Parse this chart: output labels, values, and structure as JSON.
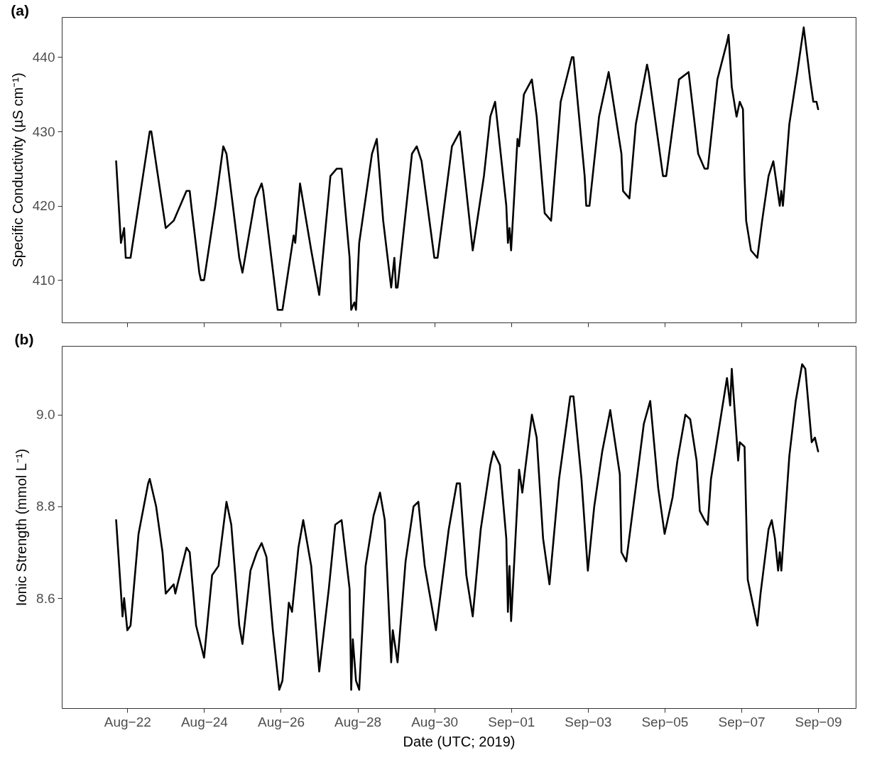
{
  "chart_data": [
    {
      "type": "line",
      "title": "(a)",
      "ylabel": "Specific Conductivity (µS cm⁻¹)",
      "xlim": [
        "2019-08-20T07:00",
        "2019-09-09T23:30"
      ],
      "ylim": [
        404.3,
        445.4
      ],
      "yticks": [
        410,
        420,
        430,
        440
      ],
      "tick_labels": "y",
      "xticks": [
        {
          "value": "2019-08-22",
          "label": null
        },
        {
          "value": "2019-08-24",
          "label": null
        },
        {
          "value": "2019-08-26",
          "label": null
        },
        {
          "value": "2019-08-28",
          "label": null
        },
        {
          "value": "2019-08-30",
          "label": null
        },
        {
          "value": "2019-09-01",
          "label": null
        },
        {
          "value": "2019-09-03",
          "label": null
        },
        {
          "value": "2019-09-05",
          "label": null
        },
        {
          "value": "2019-09-07",
          "label": null
        },
        {
          "value": "2019-09-09",
          "label": null
        }
      ],
      "x": [
        "2019-08-21T17:00",
        "2019-08-21T20:00",
        "2019-08-21T22:00",
        "2019-08-21T23:00",
        "2019-08-22T02:00",
        "2019-08-22T14:00",
        "2019-08-22T15:00",
        "2019-08-23T00:00",
        "2019-08-23T05:00",
        "2019-08-23T11:00",
        "2019-08-23T13:00",
        "2019-08-23T15:00",
        "2019-08-23T16:00",
        "2019-08-23T21:00",
        "2019-08-23T22:00",
        "2019-08-24T00:00",
        "2019-08-24T07:00",
        "2019-08-24T12:00",
        "2019-08-24T14:00",
        "2019-08-24T22:00",
        "2019-08-25T00:00",
        "2019-08-25T08:00",
        "2019-08-25T12:00",
        "2019-08-25T13:00",
        "2019-08-25T22:00",
        "2019-08-26T01:00",
        "2019-08-26T08:00",
        "2019-08-26T09:00",
        "2019-08-26T12:00",
        "2019-08-26T19:00",
        "2019-08-27T00:00",
        "2019-08-27T07:00",
        "2019-08-27T11:00",
        "2019-08-27T14:00",
        "2019-08-27T19:00",
        "2019-08-27T20:00",
        "2019-08-27T22:00",
        "2019-08-27T23:00",
        "2019-08-28T01:00",
        "2019-08-28T09:00",
        "2019-08-28T12:00",
        "2019-08-28T16:00",
        "2019-08-28T21:00",
        "2019-08-28T23:00",
        "2019-08-29T00:00",
        "2019-08-29T01:00",
        "2019-08-29T10:00",
        "2019-08-29T13:00",
        "2019-08-29T16:00",
        "2019-08-30T00:00",
        "2019-08-30T02:00",
        "2019-08-30T11:00",
        "2019-08-30T16:00",
        "2019-08-30T17:00",
        "2019-08-31T00:00",
        "2019-08-31T07:00",
        "2019-08-31T11:00",
        "2019-08-31T14:00",
        "2019-08-31T15:00",
        "2019-08-31T21:00",
        "2019-08-31T22:00",
        "2019-08-31T23:00",
        "2019-09-01T00:00",
        "2019-09-01T04:00",
        "2019-09-01T05:00",
        "2019-09-01T08:00",
        "2019-09-01T13:00",
        "2019-09-01T16:00",
        "2019-09-01T21:00",
        "2019-09-02T01:00",
        "2019-09-02T07:00",
        "2019-09-02T14:00",
        "2019-09-02T15:00",
        "2019-09-02T22:00",
        "2019-09-02T23:00",
        "2019-09-03T01:00",
        "2019-09-03T07:00",
        "2019-09-03T13:00",
        "2019-09-03T21:00",
        "2019-09-03T22:00",
        "2019-09-04T02:00",
        "2019-09-04T06:00",
        "2019-09-04T13:00",
        "2019-09-04T14:00",
        "2019-09-04T23:00",
        "2019-09-05T01:00",
        "2019-09-05T09:00",
        "2019-09-05T15:00",
        "2019-09-05T21:00",
        "2019-09-06T01:00",
        "2019-09-06T03:00",
        "2019-09-06T09:00",
        "2019-09-06T15:00",
        "2019-09-06T16:00",
        "2019-09-06T18:00",
        "2019-09-06T21:00",
        "2019-09-06T23:00",
        "2019-09-07T01:00",
        "2019-09-07T02:00",
        "2019-09-07T03:00",
        "2019-09-07T06:00",
        "2019-09-07T10:00",
        "2019-09-07T13:00",
        "2019-09-07T17:00",
        "2019-09-07T20:00",
        "2019-09-08T00:00",
        "2019-09-08T01:00",
        "2019-09-08T02:00",
        "2019-09-08T06:00",
        "2019-09-08T11:00",
        "2019-09-08T15:00",
        "2019-09-08T19:00",
        "2019-09-08T21:00",
        "2019-09-08T23:00",
        "2019-09-09T00:00"
      ],
      "series": [
        {
          "color": "#000000",
          "values": [
            426,
            415,
            417,
            413,
            413,
            430,
            430,
            417,
            418,
            421,
            422,
            422,
            420,
            411,
            410,
            410,
            420,
            428,
            427,
            413,
            411,
            421,
            423,
            422,
            406,
            406,
            416,
            415,
            423,
            414,
            408,
            424,
            425,
            425,
            413,
            406,
            407,
            406,
            415,
            427,
            429,
            418,
            409,
            413,
            409,
            409,
            427,
            428,
            426,
            413,
            413,
            428,
            430,
            428,
            414,
            424,
            432,
            434,
            432,
            420,
            415,
            417,
            414,
            429,
            428,
            435,
            437,
            432,
            419,
            418,
            434,
            440,
            440,
            424,
            420,
            420,
            432,
            438,
            427,
            422,
            421,
            431,
            439,
            438,
            424,
            424,
            437,
            438,
            427,
            425,
            425,
            437,
            442,
            443,
            436,
            432,
            434,
            433,
            424,
            418,
            414,
            413,
            418,
            424,
            426,
            420,
            422,
            420,
            431,
            438,
            444,
            437,
            434,
            434,
            433
          ]
        }
      ]
    },
    {
      "type": "line",
      "title": "(b)",
      "xlabel": "Date (UTC; 2019)",
      "ylabel": "Ionic Strength (mmol L⁻¹)",
      "xlim": [
        "2019-08-20T07:00",
        "2019-09-09T23:30"
      ],
      "ylim": [
        8.36,
        9.15
      ],
      "yticks": [
        8.6,
        8.8,
        {
          "value": 9,
          "label": "9.0"
        }
      ],
      "xticks": [
        {
          "value": "2019-08-22",
          "label": "Aug−22"
        },
        {
          "value": "2019-08-24",
          "label": "Aug−24"
        },
        {
          "value": "2019-08-26",
          "label": "Aug−26"
        },
        {
          "value": "2019-08-28",
          "label": "Aug−28"
        },
        {
          "value": "2019-08-30",
          "label": "Aug−30"
        },
        {
          "value": "2019-09-01",
          "label": "Sep−01"
        },
        {
          "value": "2019-09-03",
          "label": "Sep−03"
        },
        {
          "value": "2019-09-05",
          "label": "Sep−05"
        },
        {
          "value": "2019-09-07",
          "label": "Sep−07"
        },
        {
          "value": "2019-09-09",
          "label": "Sep−09"
        }
      ],
      "x": [
        "2019-08-21T17:00",
        "2019-08-21T21:00",
        "2019-08-21T22:00",
        "2019-08-22T00:00",
        "2019-08-22T02:00",
        "2019-08-22T07:00",
        "2019-08-22T13:00",
        "2019-08-22T14:00",
        "2019-08-22T18:00",
        "2019-08-22T22:00",
        "2019-08-23T00:00",
        "2019-08-23T05:00",
        "2019-08-23T06:00",
        "2019-08-23T13:00",
        "2019-08-23T15:00",
        "2019-08-23T19:00",
        "2019-08-24T00:00",
        "2019-08-24T05:00",
        "2019-08-24T09:00",
        "2019-08-24T14:00",
        "2019-08-24T17:00",
        "2019-08-24T22:00",
        "2019-08-25T00:00",
        "2019-08-25T05:00",
        "2019-08-25T09:00",
        "2019-08-25T12:00",
        "2019-08-25T15:00",
        "2019-08-25T19:00",
        "2019-08-25T23:00",
        "2019-08-26T01:00",
        "2019-08-26T05:00",
        "2019-08-26T07:00",
        "2019-08-26T11:00",
        "2019-08-26T14:00",
        "2019-08-26T19:00",
        "2019-08-27T00:00",
        "2019-08-27T06:00",
        "2019-08-27T10:00",
        "2019-08-27T14:00",
        "2019-08-27T19:00",
        "2019-08-27T20:00",
        "2019-08-27T21:00",
        "2019-08-27T23:00",
        "2019-08-28T01:00",
        "2019-08-28T05:00",
        "2019-08-28T10:00",
        "2019-08-28T14:00",
        "2019-08-28T17:00",
        "2019-08-28T21:00",
        "2019-08-28T22:00",
        "2019-08-29T01:00",
        "2019-08-29T06:00",
        "2019-08-29T11:00",
        "2019-08-29T14:00",
        "2019-08-29T18:00",
        "2019-08-29T21:00",
        "2019-08-30T01:00",
        "2019-08-30T05:00",
        "2019-08-30T09:00",
        "2019-08-30T14:00",
        "2019-08-30T16:00",
        "2019-08-30T20:00",
        "2019-08-31T00:00",
        "2019-08-31T05:00",
        "2019-08-31T11:00",
        "2019-08-31T13:00",
        "2019-08-31T17:00",
        "2019-08-31T21:00",
        "2019-08-31T22:00",
        "2019-08-31T23:00",
        "2019-09-01T00:00",
        "2019-09-01T05:00",
        "2019-09-01T07:00",
        "2019-09-01T13:00",
        "2019-09-01T16:00",
        "2019-09-01T20:00",
        "2019-09-02T00:00",
        "2019-09-02T06:00",
        "2019-09-02T13:00",
        "2019-09-02T15:00",
        "2019-09-02T20:00",
        "2019-09-03T00:00",
        "2019-09-03T04:00",
        "2019-09-03T09:00",
        "2019-09-03T14:00",
        "2019-09-03T20:00",
        "2019-09-03T21:00",
        "2019-09-04T00:00",
        "2019-09-04T07:00",
        "2019-09-04T11:00",
        "2019-09-04T15:00",
        "2019-09-04T20:00",
        "2019-09-05T00:00",
        "2019-09-05T05:00",
        "2019-09-05T08:00",
        "2019-09-05T13:00",
        "2019-09-05T16:00",
        "2019-09-05T20:00",
        "2019-09-05T22:00",
        "2019-09-06T01:00",
        "2019-09-06T03:00",
        "2019-09-06T05:00",
        "2019-09-06T10:00",
        "2019-09-06T15:00",
        "2019-09-06T17:00",
        "2019-09-06T18:00",
        "2019-09-06T22:00",
        "2019-09-06T23:00",
        "2019-09-07T02:00",
        "2019-09-07T04:00",
        "2019-09-07T07:00",
        "2019-09-07T10:00",
        "2019-09-07T12:00",
        "2019-09-07T17:00",
        "2019-09-07T19:00",
        "2019-09-07T21:00",
        "2019-09-07T23:00",
        "2019-09-08T00:00",
        "2019-09-08T01:00",
        "2019-09-08T06:00",
        "2019-09-08T10:00",
        "2019-09-08T14:00",
        "2019-09-08T16:00",
        "2019-09-08T20:00",
        "2019-09-08T22:00",
        "2019-09-09T00:00"
      ],
      "series": [
        {
          "color": "#000000",
          "values": [
            8.77,
            8.56,
            8.6,
            8.53,
            8.54,
            8.74,
            8.85,
            8.86,
            8.8,
            8.7,
            8.61,
            8.63,
            8.61,
            8.71,
            8.7,
            8.54,
            8.47,
            8.65,
            8.67,
            8.81,
            8.76,
            8.54,
            8.5,
            8.66,
            8.7,
            8.72,
            8.69,
            8.53,
            8.4,
            8.42,
            8.59,
            8.57,
            8.71,
            8.77,
            8.67,
            8.44,
            8.62,
            8.76,
            8.77,
            8.62,
            8.4,
            8.51,
            8.42,
            8.4,
            8.67,
            8.78,
            8.83,
            8.77,
            8.46,
            8.53,
            8.46,
            8.68,
            8.8,
            8.81,
            8.67,
            8.61,
            8.53,
            8.64,
            8.75,
            8.85,
            8.85,
            8.65,
            8.56,
            8.75,
            8.89,
            8.92,
            8.89,
            8.73,
            8.57,
            8.67,
            8.55,
            8.88,
            8.83,
            9.0,
            8.95,
            8.73,
            8.63,
            8.86,
            9.04,
            9.04,
            8.86,
            8.66,
            8.8,
            8.92,
            9.01,
            8.87,
            8.7,
            8.68,
            8.87,
            8.98,
            9.03,
            8.84,
            8.74,
            8.82,
            8.9,
            9.0,
            8.99,
            8.9,
            8.79,
            8.77,
            8.76,
            8.86,
            8.97,
            9.08,
            9.02,
            9.1,
            8.9,
            8.94,
            8.93,
            8.64,
            8.59,
            8.54,
            8.61,
            8.75,
            8.77,
            8.73,
            8.66,
            8.7,
            8.66,
            8.91,
            9.03,
            9.11,
            9.1,
            8.94,
            8.95,
            8.92
          ]
        }
      ]
    }
  ]
}
